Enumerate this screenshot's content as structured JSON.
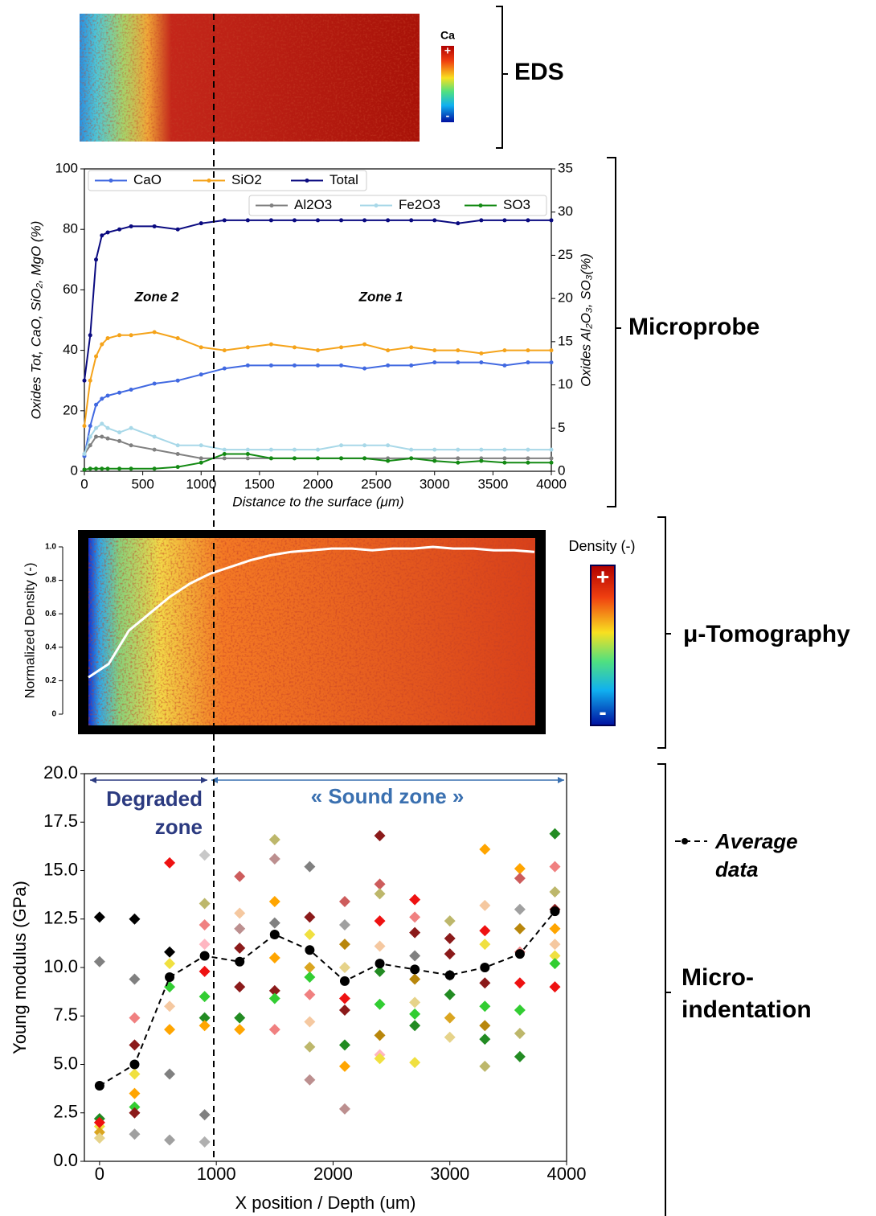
{
  "sections": [
    "EDS",
    "Microprobe",
    "μ-Tomography",
    "Micro-indentation"
  ],
  "eds": {
    "colorbar_label": "Ca",
    "colorbar_max": "+",
    "colorbar_min": "-"
  },
  "chart_data": [
    {
      "type": "line",
      "xlabel": "Distance to the surface (μm)",
      "ylabel": "Oxides Tot, CaO, SiO₂, MgO (%)",
      "y2label": "Oxides Al₂O₃, SO₃(%)",
      "annotations": [
        "Zone 2",
        "Zone 1"
      ],
      "xlim": [
        0,
        4000
      ],
      "xticks": [
        0,
        500,
        1000,
        1500,
        2000,
        2500,
        3000,
        3500,
        4000
      ],
      "ylim": [
        0,
        100
      ],
      "yticks": [
        0,
        20,
        40,
        60,
        80,
        100
      ],
      "y2lim": [
        0,
        35
      ],
      "y2ticks": [
        0,
        5,
        10,
        15,
        20,
        25,
        30,
        35
      ],
      "x": [
        0,
        50,
        100,
        150,
        200,
        300,
        400,
        600,
        800,
        1000,
        1200,
        1400,
        1600,
        1800,
        2000,
        2200,
        2400,
        2600,
        2800,
        3000,
        3200,
        3400,
        3600,
        3800,
        4000
      ],
      "series": [
        {
          "name": "CaO",
          "color": "#4169e1",
          "values": [
            5,
            15,
            22,
            24,
            25,
            26,
            27,
            29,
            30,
            32,
            34,
            35,
            35,
            35,
            35,
            35,
            34,
            35,
            35,
            36,
            36,
            36,
            35,
            36,
            36
          ]
        },
        {
          "name": "SiO2",
          "color": "#f5a31a",
          "values": [
            15,
            30,
            38,
            42,
            44,
            45,
            45,
            46,
            44,
            41,
            40,
            41,
            42,
            41,
            40,
            41,
            42,
            40,
            41,
            40,
            40,
            39,
            40,
            40,
            40
          ]
        },
        {
          "name": "Total",
          "color": "#0a0a80",
          "values": [
            30,
            45,
            70,
            78,
            79,
            80,
            81,
            81,
            80,
            82,
            83,
            83,
            83,
            83,
            83,
            83,
            83,
            83,
            83,
            83,
            82,
            83,
            83,
            83,
            83
          ]
        },
        {
          "name": "Al2O3",
          "color": "#808080",
          "axis": "y2",
          "values": [
            2,
            3,
            4,
            4,
            3.8,
            3.5,
            3,
            2.5,
            2,
            1.5,
            1.5,
            1.5,
            1.5,
            1.5,
            1.5,
            1.5,
            1.5,
            1.5,
            1.5,
            1.5,
            1.5,
            1.5,
            1.5,
            1.5,
            1.5
          ]
        },
        {
          "name": "Fe2O3",
          "color": "#a8d8e8",
          "axis": "y2",
          "values": [
            2,
            4,
            5,
            5.5,
            5,
            4.5,
            5,
            4,
            3,
            3,
            2.5,
            2.5,
            2.5,
            2.5,
            2.5,
            3,
            3,
            3,
            2.5,
            2.5,
            2.5,
            2.5,
            2.5,
            2.5,
            2.5
          ]
        },
        {
          "name": "SO3",
          "color": "#138a13",
          "axis": "y2",
          "values": [
            0.2,
            0.3,
            0.3,
            0.3,
            0.3,
            0.3,
            0.3,
            0.3,
            0.5,
            1,
            2,
            2,
            1.5,
            1.5,
            1.5,
            1.5,
            1.5,
            1.2,
            1.5,
            1.2,
            1,
            1.2,
            1,
            1,
            1
          ]
        }
      ]
    },
    {
      "type": "line",
      "ylabel": "Normalized Density (-)",
      "colorbar_label": "Density (-)",
      "colorbar_max": "+",
      "colorbar_min": "-",
      "ylim": [
        0,
        1
      ],
      "yticks": [
        0,
        0.2,
        0.4,
        0.6,
        0.8,
        {
          "value": 1,
          "label": "1.0"
        }
      ],
      "series": [
        {
          "color": "#ffffff",
          "values": [
            0.22,
            0.3,
            0.5,
            0.6,
            0.7,
            0.78,
            0.84,
            0.88,
            0.92,
            0.95,
            0.97,
            0.98,
            0.99,
            0.99,
            0.98,
            0.99,
            0.99,
            1.0,
            0.99,
            0.99,
            0.98,
            0.98,
            0.97
          ]
        }
      ]
    },
    {
      "type": "scatter",
      "xlabel": "X position / Depth (um)",
      "ylabel": "Young modulus (GPa)",
      "annotations": [
        "Degraded zone",
        "« Sound zone »"
      ],
      "xlim": [
        -130,
        4000
      ],
      "xticks": [
        0,
        1000,
        2000,
        3000,
        4000
      ],
      "ylim": [
        0,
        20
      ],
      "yticks": [
        {
          "value": 0,
          "label": "0.0"
        },
        2.5,
        {
          "value": 5,
          "label": "5.0"
        },
        7.5,
        {
          "value": 10,
          "label": "10.0"
        },
        12.5,
        {
          "value": 15,
          "label": "15.0"
        },
        17.5,
        {
          "value": 20,
          "label": "20.0"
        }
      ],
      "x": [
        0,
        0,
        0,
        0,
        0,
        0,
        0,
        300,
        300,
        300,
        300,
        300,
        300,
        300,
        300,
        300,
        600,
        600,
        600,
        600,
        600,
        600,
        600,
        600,
        900,
        900,
        900,
        900,
        900,
        900,
        900,
        900,
        900,
        900,
        1200,
        1200,
        1200,
        1200,
        1200,
        1200,
        1200,
        1500,
        1500,
        1500,
        1500,
        1500,
        1500,
        1500,
        1500,
        1800,
        1800,
        1800,
        1800,
        1800,
        1800,
        1800,
        1800,
        1800,
        2100,
        2100,
        2100,
        2100,
        2100,
        2100,
        2100,
        2100,
        2100,
        2400,
        2400,
        2400,
        2400,
        2400,
        2400,
        2400,
        2400,
        2400,
        2400,
        2700,
        2700,
        2700,
        2700,
        2700,
        2700,
        2700,
        2700,
        2700,
        3000,
        3000,
        3000,
        3000,
        3000,
        3000,
        3000,
        3300,
        3300,
        3300,
        3300,
        3300,
        3300,
        3300,
        3300,
        3300,
        3600,
        3600,
        3600,
        3600,
        3600,
        3600,
        3600,
        3600,
        3600,
        3900,
        3900,
        3900,
        3900,
        3900,
        3900,
        3900,
        3900,
        3900
      ],
      "values": [
        12.6,
        10.3,
        2.2,
        1.8,
        1.5,
        1.2,
        2.0,
        12.5,
        9.4,
        7.4,
        6.0,
        4.5,
        3.5,
        2.8,
        2.5,
        1.4,
        15.4,
        10.8,
        10.2,
        9.0,
        8.0,
        6.8,
        4.5,
        1.1,
        15.8,
        13.3,
        12.2,
        11.2,
        9.8,
        8.5,
        7.4,
        7.0,
        2.4,
        1.0,
        14.7,
        12.8,
        12.0,
        11.0,
        9.0,
        7.4,
        6.8,
        16.6,
        15.6,
        13.4,
        12.3,
        10.5,
        8.8,
        8.4,
        6.8,
        15.2,
        12.6,
        11.7,
        10.0,
        9.5,
        8.6,
        7.2,
        5.9,
        4.2,
        13.4,
        12.2,
        11.2,
        10.0,
        8.4,
        7.8,
        6.0,
        4.9,
        2.7,
        16.8,
        14.3,
        13.8,
        12.4,
        11.1,
        9.8,
        8.1,
        6.5,
        5.5,
        5.3,
        13.5,
        12.6,
        11.8,
        10.6,
        9.4,
        8.2,
        7.6,
        7.0,
        5.1,
        12.4,
        11.5,
        10.7,
        9.6,
        8.6,
        7.4,
        6.4,
        16.1,
        13.2,
        11.9,
        11.2,
        9.2,
        8.0,
        7.0,
        6.3,
        4.9,
        15.1,
        14.6,
        13.0,
        12.0,
        10.8,
        9.2,
        7.8,
        6.6,
        5.4,
        16.9,
        15.2,
        13.9,
        13.0,
        12.0,
        11.2,
        10.6,
        10.2,
        9.0
      ],
      "colors": [
        "#000000",
        "#808080",
        "#228b22",
        "#f0e040",
        "#daa520",
        "#e6d38a",
        "#ee1111",
        "#000000",
        "#808080",
        "#f08080",
        "#8b1a1a",
        "#f0e040",
        "#ffa500",
        "#32cd32",
        "#8b1a1a",
        "#a0a0a0",
        "#ee1111",
        "#000000",
        "#f0e040",
        "#32cd32",
        "#f5c8a0",
        "#ffa500",
        "#808080",
        "#a0a0a0",
        "#c8c8c8",
        "#bdb76b",
        "#f08080",
        "#ffb6c1",
        "#ee1111",
        "#32cd32",
        "#228b22",
        "#ffa500",
        "#808080",
        "#b0b0b0",
        "#cd5c5c",
        "#f5c8a0",
        "#bc8f8f",
        "#8b1a1a",
        "#8b1a1a",
        "#228b22",
        "#ffa500",
        "#bdb76b",
        "#bc8f8f",
        "#ffa500",
        "#808080",
        "#ffa500",
        "#8b1a1a",
        "#32cd32",
        "#f08080",
        "#808080",
        "#8b1a1a",
        "#f0e040",
        "#daa520",
        "#32cd32",
        "#f08080",
        "#f5c8a0",
        "#bdb76b",
        "#bc8f8f",
        "#cd5c5c",
        "#a0a0a0",
        "#b8860b",
        "#e6d38a",
        "#ee1111",
        "#8b1a1a",
        "#228b22",
        "#ffa500",
        "#bc8f8f",
        "#8b1a1a",
        "#cd5c5c",
        "#bdb76b",
        "#ee1111",
        "#f5c8a0",
        "#228b22",
        "#32cd32",
        "#b8860b",
        "#ffb6c1",
        "#f0e040",
        "#ee1111",
        "#f08080",
        "#8b1a1a",
        "#808080",
        "#b8860b",
        "#e6d38a",
        "#32cd32",
        "#228b22",
        "#f0e040",
        "#bdb76b",
        "#8b1a1a",
        "#8b1a1a",
        "#808080",
        "#228b22",
        "#daa520",
        "#e6d38a",
        "#ffa500",
        "#f5c8a0",
        "#ee1111",
        "#f0e040",
        "#8b1a1a",
        "#32cd32",
        "#b8860b",
        "#228b22",
        "#bdb76b",
        "#ffa500",
        "#cd5c5c",
        "#a0a0a0",
        "#b8860b",
        "#f08080",
        "#ee1111",
        "#32cd32",
        "#bdb76b",
        "#228b22",
        "#228b22",
        "#f08080",
        "#bdb76b",
        "#8b1a1a",
        "#ffa500",
        "#f5c8a0",
        "#f0e040",
        "#32cd32",
        "#ee1111"
      ],
      "series": [
        {
          "name": "Average data",
          "color": "#000000",
          "x": [
            0,
            300,
            600,
            900,
            1200,
            1500,
            1800,
            2100,
            2400,
            2700,
            3000,
            3300,
            3600,
            3900
          ],
          "values": [
            3.9,
            5.0,
            9.5,
            10.6,
            10.3,
            11.7,
            10.9,
            9.3,
            10.2,
            9.9,
            9.6,
            10.0,
            10.7,
            12.9
          ]
        }
      ]
    }
  ]
}
